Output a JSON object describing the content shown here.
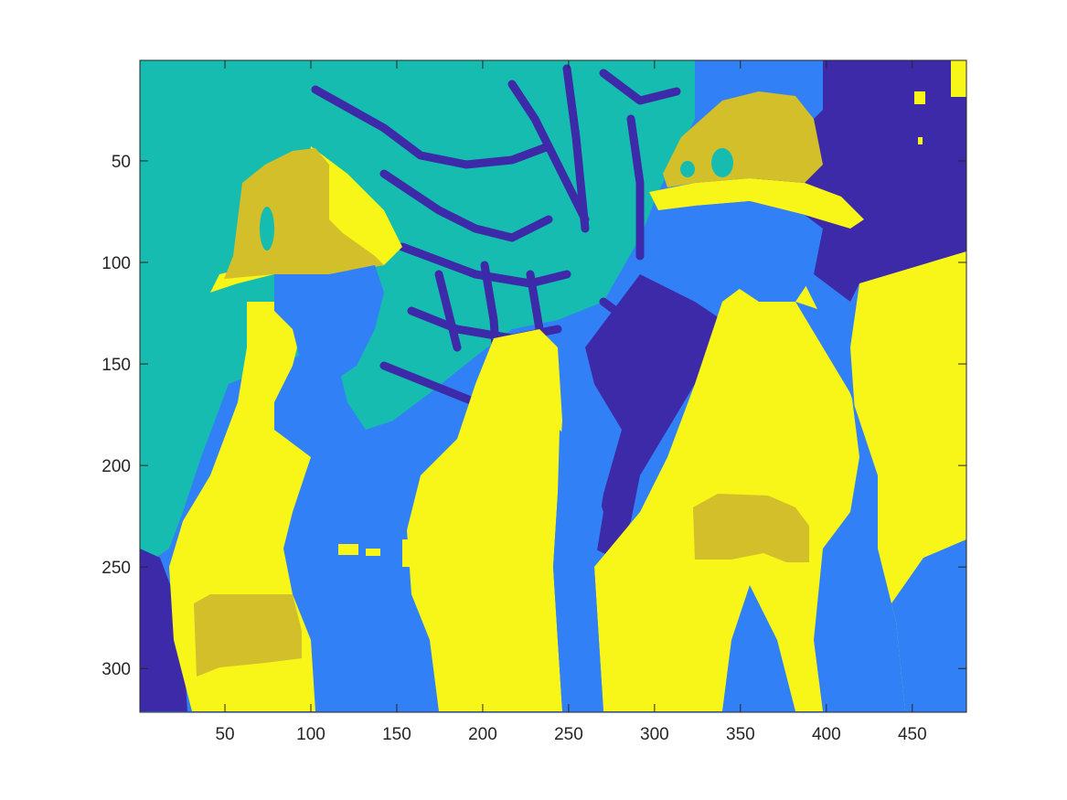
{
  "chart_data": {
    "type": "heatmap",
    "title": "",
    "xlabel": "",
    "ylabel": "",
    "xlim": [
      0.5,
      481.5
    ],
    "ylim": [
      0.5,
      321.5
    ],
    "y_reversed": true,
    "x_ticks": [
      50,
      100,
      150,
      200,
      250,
      300,
      350,
      400,
      450
    ],
    "x_tick_labels": [
      "50",
      "100",
      "150",
      "200",
      "250",
      "300",
      "350",
      "400",
      "450"
    ],
    "y_ticks": [
      50,
      100,
      150,
      200,
      250,
      300
    ],
    "y_tick_labels": [
      "50",
      "100",
      "150",
      "200",
      "250",
      "300"
    ],
    "clusters": [
      {
        "id": 1,
        "color": "#3d2aa8"
      },
      {
        "id": 2,
        "color": "#3280f6"
      },
      {
        "id": 3,
        "color": "#17bcb0"
      },
      {
        "id": 4,
        "color": "#d2bf2a"
      },
      {
        "id": 5,
        "color": "#f8f518"
      }
    ]
  }
}
